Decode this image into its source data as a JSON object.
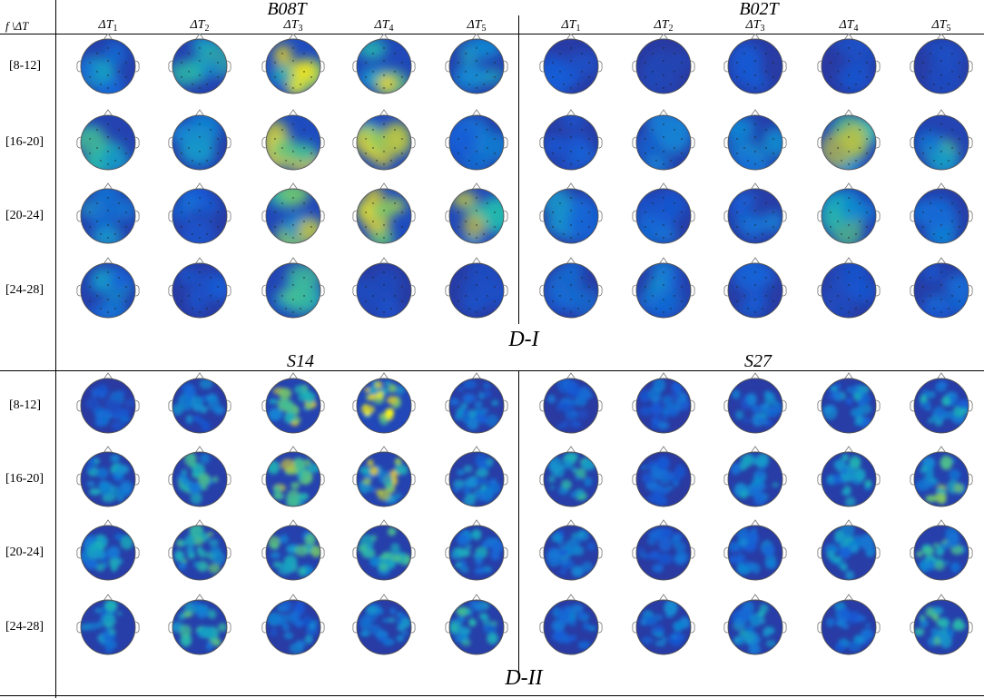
{
  "header": {
    "corner_label": "f \\ΔT",
    "columns": [
      {
        "base": "ΔT",
        "sub": "1"
      },
      {
        "base": "ΔT",
        "sub": "2"
      },
      {
        "base": "ΔT",
        "sub": "3"
      },
      {
        "base": "ΔT",
        "sub": "4"
      },
      {
        "base": "ΔT",
        "sub": "5"
      },
      {
        "base": "ΔT",
        "sub": "1"
      },
      {
        "base": "ΔT",
        "sub": "2"
      },
      {
        "base": "ΔT",
        "sub": "3"
      },
      {
        "base": "ΔT",
        "sub": "4"
      },
      {
        "base": "ΔT",
        "sub": "5"
      }
    ]
  },
  "sections": [
    {
      "label": "D-I",
      "style": "smooth",
      "groups": [
        "B08T",
        "B02T"
      ],
      "rows": [
        "[8-12]",
        "[16-20]",
        "[20-24]",
        "[24-28]"
      ],
      "intensity": [
        [
          0.35,
          0.4,
          0.8,
          0.65,
          0.4,
          0.12,
          0.05,
          0.12,
          0.08,
          0.1
        ],
        [
          0.45,
          0.3,
          0.8,
          0.7,
          0.28,
          0.18,
          0.22,
          0.3,
          0.72,
          0.48
        ],
        [
          0.4,
          0.18,
          0.62,
          0.8,
          0.68,
          0.3,
          0.18,
          0.2,
          0.55,
          0.25
        ],
        [
          0.32,
          0.12,
          0.52,
          0.1,
          0.1,
          0.18,
          0.28,
          0.15,
          0.1,
          0.22
        ]
      ]
    },
    {
      "label": "D-II",
      "style": "patchy",
      "groups": [
        "S14",
        "S27"
      ],
      "rows": [
        "[8-12]",
        "[16-20]",
        "[20-24]",
        "[24-28]"
      ],
      "intensity": [
        [
          0.2,
          0.3,
          0.65,
          0.9,
          0.3,
          0.2,
          0.22,
          0.3,
          0.35,
          0.38
        ],
        [
          0.35,
          0.45,
          0.62,
          0.65,
          0.35,
          0.42,
          0.2,
          0.35,
          0.4,
          0.55
        ],
        [
          0.38,
          0.5,
          0.52,
          0.48,
          0.38,
          0.3,
          0.2,
          0.28,
          0.35,
          0.48
        ],
        [
          0.4,
          0.5,
          0.3,
          0.32,
          0.45,
          0.25,
          0.28,
          0.38,
          0.28,
          0.48
        ]
      ]
    }
  ]
}
